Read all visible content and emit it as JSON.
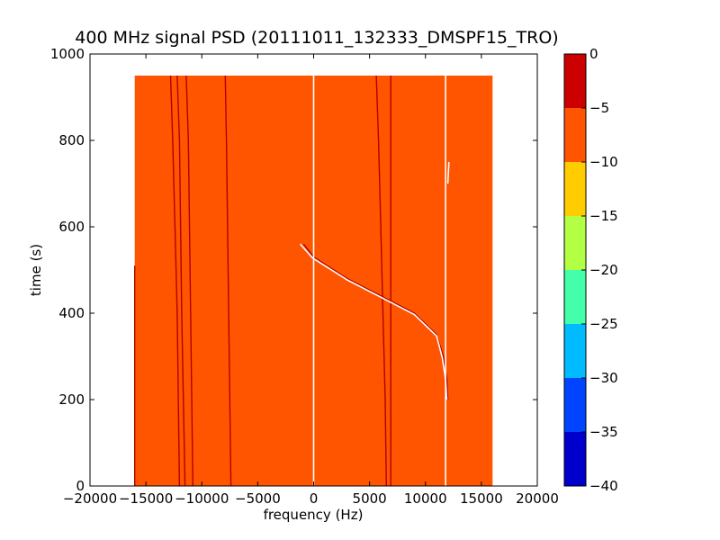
{
  "chart_data": {
    "type": "heatmap",
    "title": "400 MHz signal PSD (20111011_132333_DMSPF15_TRO)",
    "xlabel": "frequency (Hz)",
    "ylabel": "time (s)",
    "xlim": [
      -20000,
      20000
    ],
    "ylim": [
      0,
      1000
    ],
    "xticks": [
      -20000,
      -15000,
      -10000,
      -5000,
      0,
      5000,
      10000,
      15000,
      20000
    ],
    "xtick_labels": [
      "−20000",
      "−15000",
      "−10000",
      "−5000",
      "0",
      "5000",
      "10000",
      "15000",
      "20000"
    ],
    "yticks": [
      0,
      200,
      400,
      600,
      800,
      1000
    ],
    "ytick_labels": [
      "0",
      "200",
      "400",
      "600",
      "800",
      "1000"
    ],
    "grid": false,
    "data_extent": {
      "freq": [
        -16000,
        16000
      ],
      "time": [
        0,
        950
      ]
    },
    "background_level": -7.5,
    "colorbar": {
      "range": [
        -40,
        0
      ],
      "ticks": [
        0,
        -5,
        -10,
        -15,
        -20,
        -25,
        -30,
        -35,
        -40
      ],
      "tick_labels": [
        "0",
        "−5",
        "−10",
        "−15",
        "−20",
        "−25",
        "−30",
        "−35",
        "−40"
      ],
      "bands": [
        {
          "from": -5,
          "to": 0,
          "color": "#cc0000"
        },
        {
          "from": -10,
          "to": -5,
          "color": "#ff5500"
        },
        {
          "from": -15,
          "to": -10,
          "color": "#ffcc00"
        },
        {
          "from": -20,
          "to": -15,
          "color": "#b2ff44"
        },
        {
          "from": -25,
          "to": -20,
          "color": "#44ffaa"
        },
        {
          "from": -30,
          "to": -25,
          "color": "#00bbff"
        },
        {
          "from": -35,
          "to": -30,
          "color": "#0044ff"
        },
        {
          "from": -40,
          "to": -35,
          "color": "#0000cc"
        }
      ]
    },
    "series": [
      {
        "kind": "dark",
        "points": [
          [
            -16000,
            0
          ],
          [
            -16000,
            510
          ]
        ]
      },
      {
        "kind": "dark",
        "points": [
          [
            -12000,
            0
          ],
          [
            -12200,
            400
          ],
          [
            -12600,
            800
          ],
          [
            -12800,
            950
          ]
        ]
      },
      {
        "kind": "dark",
        "points": [
          [
            -11500,
            0
          ],
          [
            -11800,
            400
          ],
          [
            -12000,
            800
          ],
          [
            -12200,
            950
          ]
        ]
      },
      {
        "kind": "dark",
        "points": [
          [
            -10800,
            0
          ],
          [
            -11000,
            400
          ],
          [
            -11200,
            800
          ],
          [
            -11400,
            950
          ]
        ]
      },
      {
        "kind": "dark",
        "points": [
          [
            -7400,
            0
          ],
          [
            -7600,
            400
          ],
          [
            -7800,
            800
          ],
          [
            -7900,
            950
          ]
        ]
      },
      {
        "kind": "dark",
        "points": [
          [
            6500,
            0
          ],
          [
            6400,
            200
          ],
          [
            6200,
            400
          ],
          [
            6000,
            600
          ],
          [
            5800,
            800
          ],
          [
            5600,
            950
          ]
        ]
      },
      {
        "kind": "dark",
        "points": [
          [
            6900,
            0
          ],
          [
            6900,
            950
          ]
        ]
      },
      {
        "kind": "dark",
        "points": [
          [
            -900,
            560
          ],
          [
            0,
            530
          ],
          [
            3000,
            480
          ],
          [
            6000,
            440
          ],
          [
            9000,
            400
          ],
          [
            11000,
            350
          ],
          [
            11600,
            300
          ],
          [
            11900,
            250
          ],
          [
            12000,
            200
          ]
        ]
      },
      {
        "kind": "white",
        "points": [
          [
            -1200,
            560
          ],
          [
            -100,
            528
          ],
          [
            3000,
            477
          ],
          [
            6000,
            437
          ],
          [
            9000,
            397
          ],
          [
            11000,
            347
          ],
          [
            11500,
            297
          ],
          [
            11800,
            247
          ],
          [
            11900,
            200
          ]
        ]
      },
      {
        "kind": "white",
        "points": [
          [
            0,
            0
          ],
          [
            0,
            950
          ]
        ]
      },
      {
        "kind": "white",
        "points": [
          [
            11800,
            0
          ],
          [
            11800,
            950
          ]
        ]
      },
      {
        "kind": "white",
        "points": [
          [
            12000,
            700
          ],
          [
            12100,
            750
          ]
        ]
      }
    ]
  }
}
